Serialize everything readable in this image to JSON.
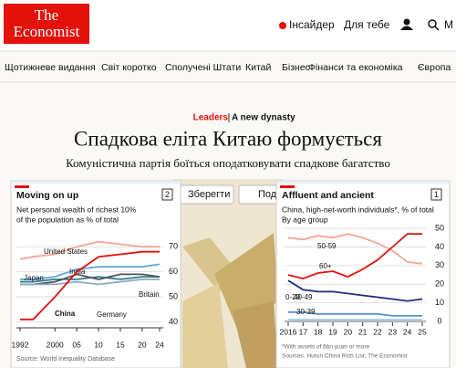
{
  "header": {
    "logo": [
      "The",
      "Economist"
    ],
    "links": [
      "Інсайдер",
      "Для тебе"
    ],
    "search": "M"
  },
  "nav": [
    "Щотижневе видання",
    "Світ коротко",
    "Сполучені Штати",
    "Китай",
    "Бізнес",
    "Фінанси та економіка",
    "Європа"
  ],
  "article": {
    "section": "Leaders",
    "rubric": "A new dynasty",
    "title": "Спадкова еліта Китаю формується",
    "subtitle": "Комуністична партія боїться оподатковувати спадкове багатство",
    "buttons": [
      "Зберегти",
      "Под"
    ]
  },
  "chart_data": [
    {
      "type": "line",
      "title": "Moving on up",
      "number": "2",
      "subtitle": [
        "Net personal wealth of richest 10%",
        "of the population as % of total"
      ],
      "x": [
        1992,
        1995,
        2000,
        2005,
        2010,
        2015,
        2020,
        2024
      ],
      "series": [
        {
          "name": "United States",
          "color": "#f4a596",
          "values": [
            65,
            66,
            67,
            70,
            72,
            71,
            70,
            70
          ]
        },
        {
          "name": "India",
          "color": "#5fa9dc",
          "values": [
            57,
            57,
            58,
            61,
            62,
            62,
            62,
            63
          ]
        },
        {
          "name": "Japan",
          "color": "#2c7e8c",
          "values": [
            56,
            56,
            57,
            57,
            58,
            57,
            58,
            58
          ]
        },
        {
          "name": "Germany",
          "color": "#555555",
          "values": [
            55,
            55,
            56,
            59,
            57,
            59,
            59,
            58
          ]
        },
        {
          "name": "Britain",
          "color": "#8faabe",
          "values": [
            55,
            55,
            55,
            56,
            55,
            56,
            57,
            57
          ]
        },
        {
          "name": "China",
          "color": "#e3120b",
          "values": [
            41,
            41,
            50,
            60,
            66,
            67,
            68,
            68
          ]
        }
      ],
      "xlim": [
        1992,
        2024
      ],
      "ylim": [
        38,
        73
      ],
      "xticks": [
        1992,
        2000,
        {
          "value": 2005,
          "label": "05"
        },
        {
          "value": 2010,
          "label": "10"
        },
        {
          "value": 2015,
          "label": "15"
        },
        {
          "value": 2020,
          "label": "20"
        },
        {
          "value": 2024,
          "label": "24"
        }
      ],
      "yticks": [
        40,
        50,
        60,
        70
      ],
      "grid": true,
      "source": "Source: World Inequality Database"
    },
    {
      "type": "line",
      "title": "Affluent and ancient",
      "number": "1",
      "subtitle": [
        "China, high-net-worth individuals*, % of total",
        "By age group"
      ],
      "x": [
        2016,
        2017,
        2018,
        2019,
        2020,
        2021,
        2022,
        2023,
        2024,
        2025
      ],
      "series": [
        {
          "name": "50-59",
          "color": "#f4a596",
          "values": [
            45,
            44,
            46,
            45,
            47,
            45,
            42,
            38,
            32,
            31
          ]
        },
        {
          "name": "60+",
          "color": "#e3120b",
          "values": [
            25,
            23,
            26,
            27,
            24,
            28,
            33,
            40,
            47,
            47
          ]
        },
        {
          "name": "40-49",
          "color": "#1f2e7a",
          "values": [
            22,
            17,
            16,
            16,
            15,
            14,
            13,
            12,
            11,
            12
          ]
        },
        {
          "name": "30-39",
          "color": "#5e8fcd",
          "values": [
            5,
            5,
            4,
            4,
            4,
            4,
            4,
            3,
            3,
            3
          ]
        },
        {
          "name": "0-29",
          "color": "#a6c7e8",
          "values": [
            1,
            1,
            1,
            1,
            1,
            1,
            1,
            1,
            1,
            1
          ]
        }
      ],
      "xlim": [
        2016,
        2025
      ],
      "ylim": [
        0,
        52
      ],
      "xticks": [
        2016,
        {
          "value": 2017,
          "label": "17"
        },
        {
          "value": 2018,
          "label": "18"
        },
        {
          "value": 2019,
          "label": "19"
        },
        {
          "value": 2020,
          "label": "20"
        },
        {
          "value": 2021,
          "label": "21"
        },
        {
          "value": 2022,
          "label": "22"
        },
        {
          "value": 2023,
          "label": "23"
        },
        {
          "value": 2024,
          "label": "24"
        },
        {
          "value": 2025,
          "label": "25"
        }
      ],
      "yticks": [
        0,
        10,
        20,
        30,
        40,
        50
      ],
      "grid": true,
      "notes": [
        "*With assets of 6bn yuan or more",
        "Sources: Hurun China Rich List; The Economist"
      ]
    }
  ]
}
